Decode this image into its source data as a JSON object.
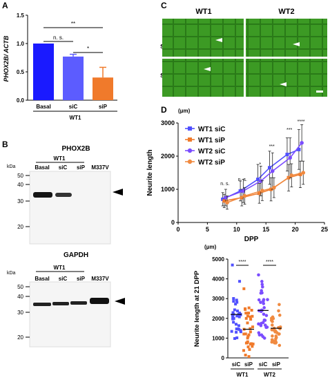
{
  "panels": {
    "a": "A",
    "b": "B",
    "c": "C",
    "d": "D"
  },
  "chart_data": [
    {
      "type": "bar",
      "panel": "A",
      "ylabel": "PHOX2B/ ACTB",
      "categories": [
        "Basal",
        "siC",
        "siP"
      ],
      "group_label": "WT1",
      "values": [
        1.0,
        0.77,
        0.4
      ],
      "errors": [
        0.0,
        0.04,
        0.18
      ],
      "colors": [
        "#1a1aff",
        "#5c5cff",
        "#f07a2b"
      ],
      "ylim": [
        0,
        1.5
      ],
      "yticks": [
        "0.0",
        "0.5",
        "1.0",
        "1.5"
      ],
      "significance": [
        {
          "pair": [
            "Basal",
            "siP"
          ],
          "label": "**"
        },
        {
          "pair": [
            "Basal",
            "siC"
          ],
          "label": "n. s."
        },
        {
          "pair": [
            "siC",
            "siP"
          ],
          "label": "*"
        }
      ]
    },
    {
      "type": "line",
      "panel": "D-top",
      "xlabel": "DPP",
      "ylabel": "Neurite length",
      "unit": "(μm)",
      "xlim": [
        0,
        25
      ],
      "ylim": [
        0,
        3000
      ],
      "xticks": [
        "0",
        "5",
        "10",
        "15",
        "20",
        "25"
      ],
      "yticks": [
        "0",
        "1000",
        "2000",
        "3000"
      ],
      "x": [
        8,
        11,
        14,
        16,
        19,
        21
      ],
      "series": [
        {
          "name": "WT1 siC",
          "color": "#5050ff",
          "marker": "square",
          "values": [
            700,
            950,
            1300,
            1650,
            2050,
            2200
          ],
          "errors": [
            200,
            300,
            450,
            500,
            500,
            600
          ]
        },
        {
          "name": "WT1 siP",
          "color": "#f07a2b",
          "marker": "square",
          "values": [
            650,
            750,
            880,
            1000,
            1350,
            1450
          ],
          "errors": [
            200,
            250,
            300,
            350,
            400,
            400
          ]
        },
        {
          "name": "WT2 siC",
          "color": "#7b4dff",
          "marker": "circle",
          "values": [
            750,
            950,
            1250,
            1550,
            1950,
            2400
          ],
          "errors": [
            250,
            350,
            450,
            550,
            600,
            550
          ]
        },
        {
          "name": "WT2 siP",
          "color": "#f08a40",
          "marker": "circle",
          "values": [
            600,
            800,
            960,
            1050,
            1420,
            1500
          ],
          "errors": [
            200,
            250,
            300,
            300,
            350,
            350
          ]
        }
      ],
      "significance": [
        {
          "x": 8,
          "label": "n. s."
        },
        {
          "x": 11,
          "label": "n. s."
        },
        {
          "x": 14,
          "label": "*"
        },
        {
          "x": 16,
          "label": "***"
        },
        {
          "x": 19,
          "label": "***"
        },
        {
          "x": 21,
          "label": "****"
        }
      ]
    },
    {
      "type": "scatter",
      "panel": "D-bottom",
      "ylabel": "Neurite length at 21 DPP",
      "unit": "(μm)",
      "ylim": [
        0,
        5000
      ],
      "yticks": [
        "0",
        "1000",
        "2000",
        "3000",
        "4000",
        "5000"
      ],
      "categories": [
        "siC",
        "siP",
        "siC",
        "siP"
      ],
      "groups": [
        "WT1",
        "WT2"
      ],
      "series": [
        {
          "group": "WT1",
          "condition": "siC",
          "color": "#5050ff",
          "marker": "square",
          "mean": 2200,
          "min": 1300,
          "max": 4700
        },
        {
          "group": "WT1",
          "condition": "siP",
          "color": "#f07a2b",
          "marker": "square",
          "mean": 1450,
          "min": 700,
          "max": 3500
        },
        {
          "group": "WT2",
          "condition": "siC",
          "color": "#7b4dff",
          "marker": "circle",
          "mean": 2400,
          "min": 1000,
          "max": 4200
        },
        {
          "group": "WT2",
          "condition": "siP",
          "color": "#f08a40",
          "marker": "circle",
          "mean": 1500,
          "min": 800,
          "max": 2700
        }
      ],
      "significance": [
        {
          "group": "WT1",
          "label": "****"
        },
        {
          "group": "WT2",
          "label": "****"
        }
      ]
    }
  ],
  "blot_b": {
    "top": {
      "title": "PHOX2B",
      "kda_label": "kDa",
      "group": "WT1",
      "lanes": [
        "Basal",
        "siC",
        "siP",
        "M337V"
      ],
      "markers": [
        "50",
        "40",
        "30",
        "20"
      ]
    },
    "bottom": {
      "title": "GAPDH",
      "kda_label": "kDa",
      "group": "WT1",
      "lanes": [
        "Basal",
        "siC",
        "siP",
        "M337V"
      ],
      "markers": [
        "50",
        "40",
        "30",
        "20"
      ]
    }
  },
  "micro_c": {
    "columns": [
      "WT1",
      "WT2"
    ],
    "rows": [
      "siC",
      "siP"
    ]
  }
}
